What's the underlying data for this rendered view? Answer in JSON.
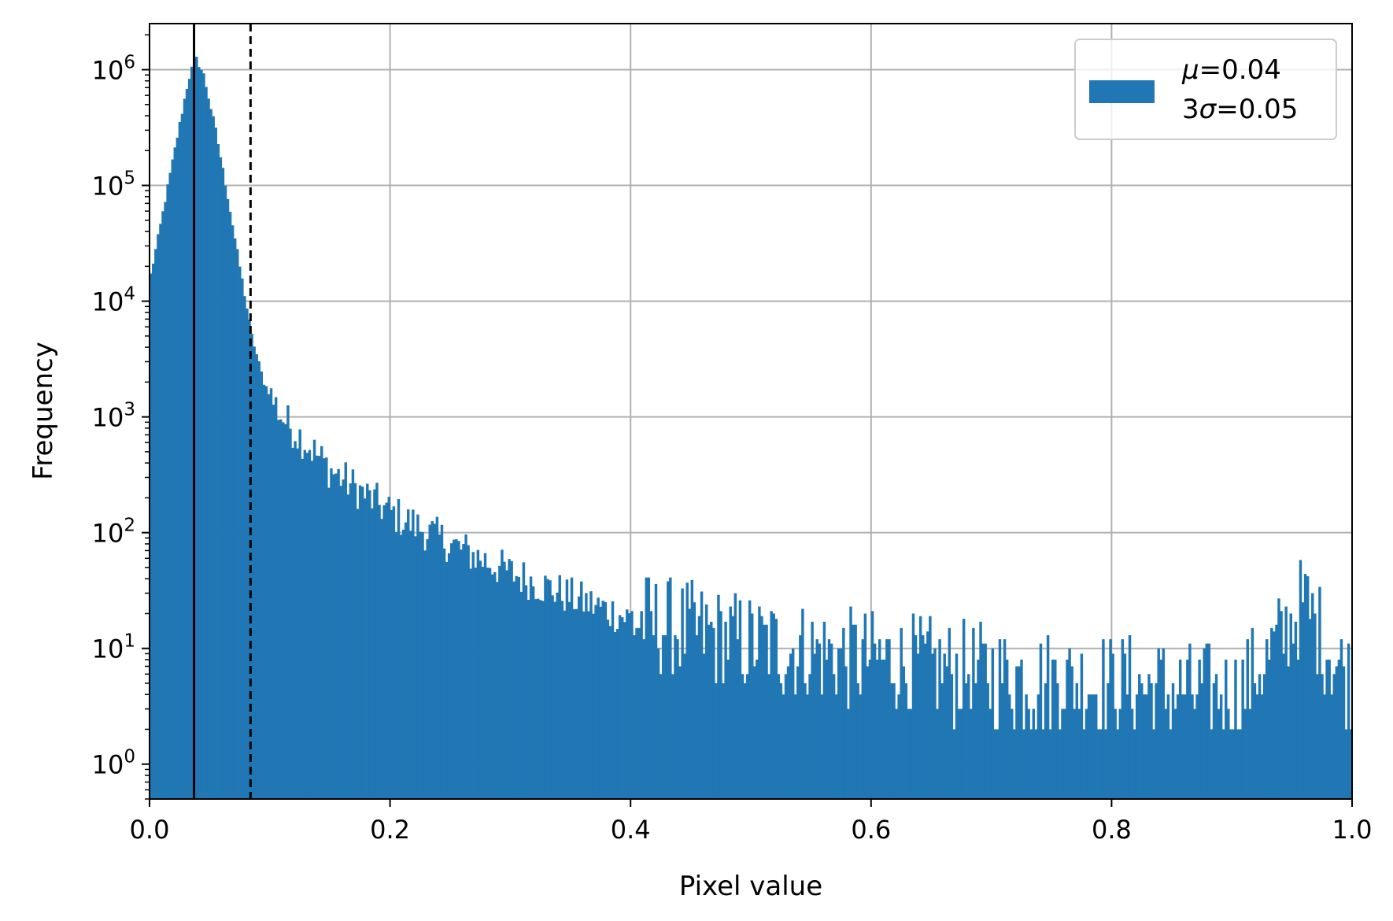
{
  "chart_data": {
    "type": "histogram",
    "title": "",
    "xlabel": "Pixel value",
    "ylabel": "Frequency",
    "xlim": [
      0.0,
      1.0
    ],
    "ylim": [
      0.5,
      2500000
    ],
    "yscale": "log",
    "grid": true,
    "legend_position": "top-right",
    "bar_color": "#2077b4",
    "x_ticks": [
      "0.0",
      "0.2",
      "0.4",
      "0.6",
      "0.8",
      "1.0"
    ],
    "y_ticks": [
      {
        "value": 1,
        "label": "10",
        "exp": "0"
      },
      {
        "value": 10,
        "label": "10",
        "exp": "1"
      },
      {
        "value": 100,
        "label": "10",
        "exp": "2"
      },
      {
        "value": 1000,
        "label": "10",
        "exp": "3"
      },
      {
        "value": 10000,
        "label": "10",
        "exp": "4"
      },
      {
        "value": 100000,
        "label": "10",
        "exp": "5"
      },
      {
        "value": 1000000,
        "label": "10",
        "exp": "6"
      }
    ],
    "legend": {
      "line1": {
        "symbol": "μ",
        "text": "=0.04"
      },
      "line2": {
        "prefix": "3",
        "symbol": "σ",
        "text": "=0.05"
      }
    },
    "mean_line": {
      "x": 0.037,
      "style": "solid",
      "color": "#000000"
    },
    "threshold_line": {
      "x": 0.084,
      "style": "dashed",
      "color": "#000000"
    },
    "bins": 500,
    "profile_points": [
      {
        "x": 0.0,
        "y": 15000
      },
      {
        "x": 0.008,
        "y": 40000
      },
      {
        "x": 0.016,
        "y": 110000
      },
      {
        "x": 0.024,
        "y": 300000
      },
      {
        "x": 0.032,
        "y": 800000
      },
      {
        "x": 0.038,
        "y": 1300000
      },
      {
        "x": 0.045,
        "y": 900000
      },
      {
        "x": 0.055,
        "y": 300000
      },
      {
        "x": 0.065,
        "y": 80000
      },
      {
        "x": 0.075,
        "y": 20000
      },
      {
        "x": 0.085,
        "y": 5000
      },
      {
        "x": 0.095,
        "y": 2000
      },
      {
        "x": 0.11,
        "y": 1000
      },
      {
        "x": 0.13,
        "y": 600
      },
      {
        "x": 0.15,
        "y": 350
      },
      {
        "x": 0.2,
        "y": 150
      },
      {
        "x": 0.25,
        "y": 80
      },
      {
        "x": 0.3,
        "y": 45
      },
      {
        "x": 0.35,
        "y": 28
      },
      {
        "x": 0.4,
        "y": 18
      },
      {
        "x": 0.5,
        "y": 11
      },
      {
        "x": 0.6,
        "y": 8
      },
      {
        "x": 0.7,
        "y": 6
      },
      {
        "x": 0.8,
        "y": 5
      },
      {
        "x": 0.9,
        "y": 4
      },
      {
        "x": 0.93,
        "y": 8
      },
      {
        "x": 0.96,
        "y": 25
      },
      {
        "x": 0.98,
        "y": 10
      },
      {
        "x": 1.0,
        "y": 5
      }
    ]
  }
}
